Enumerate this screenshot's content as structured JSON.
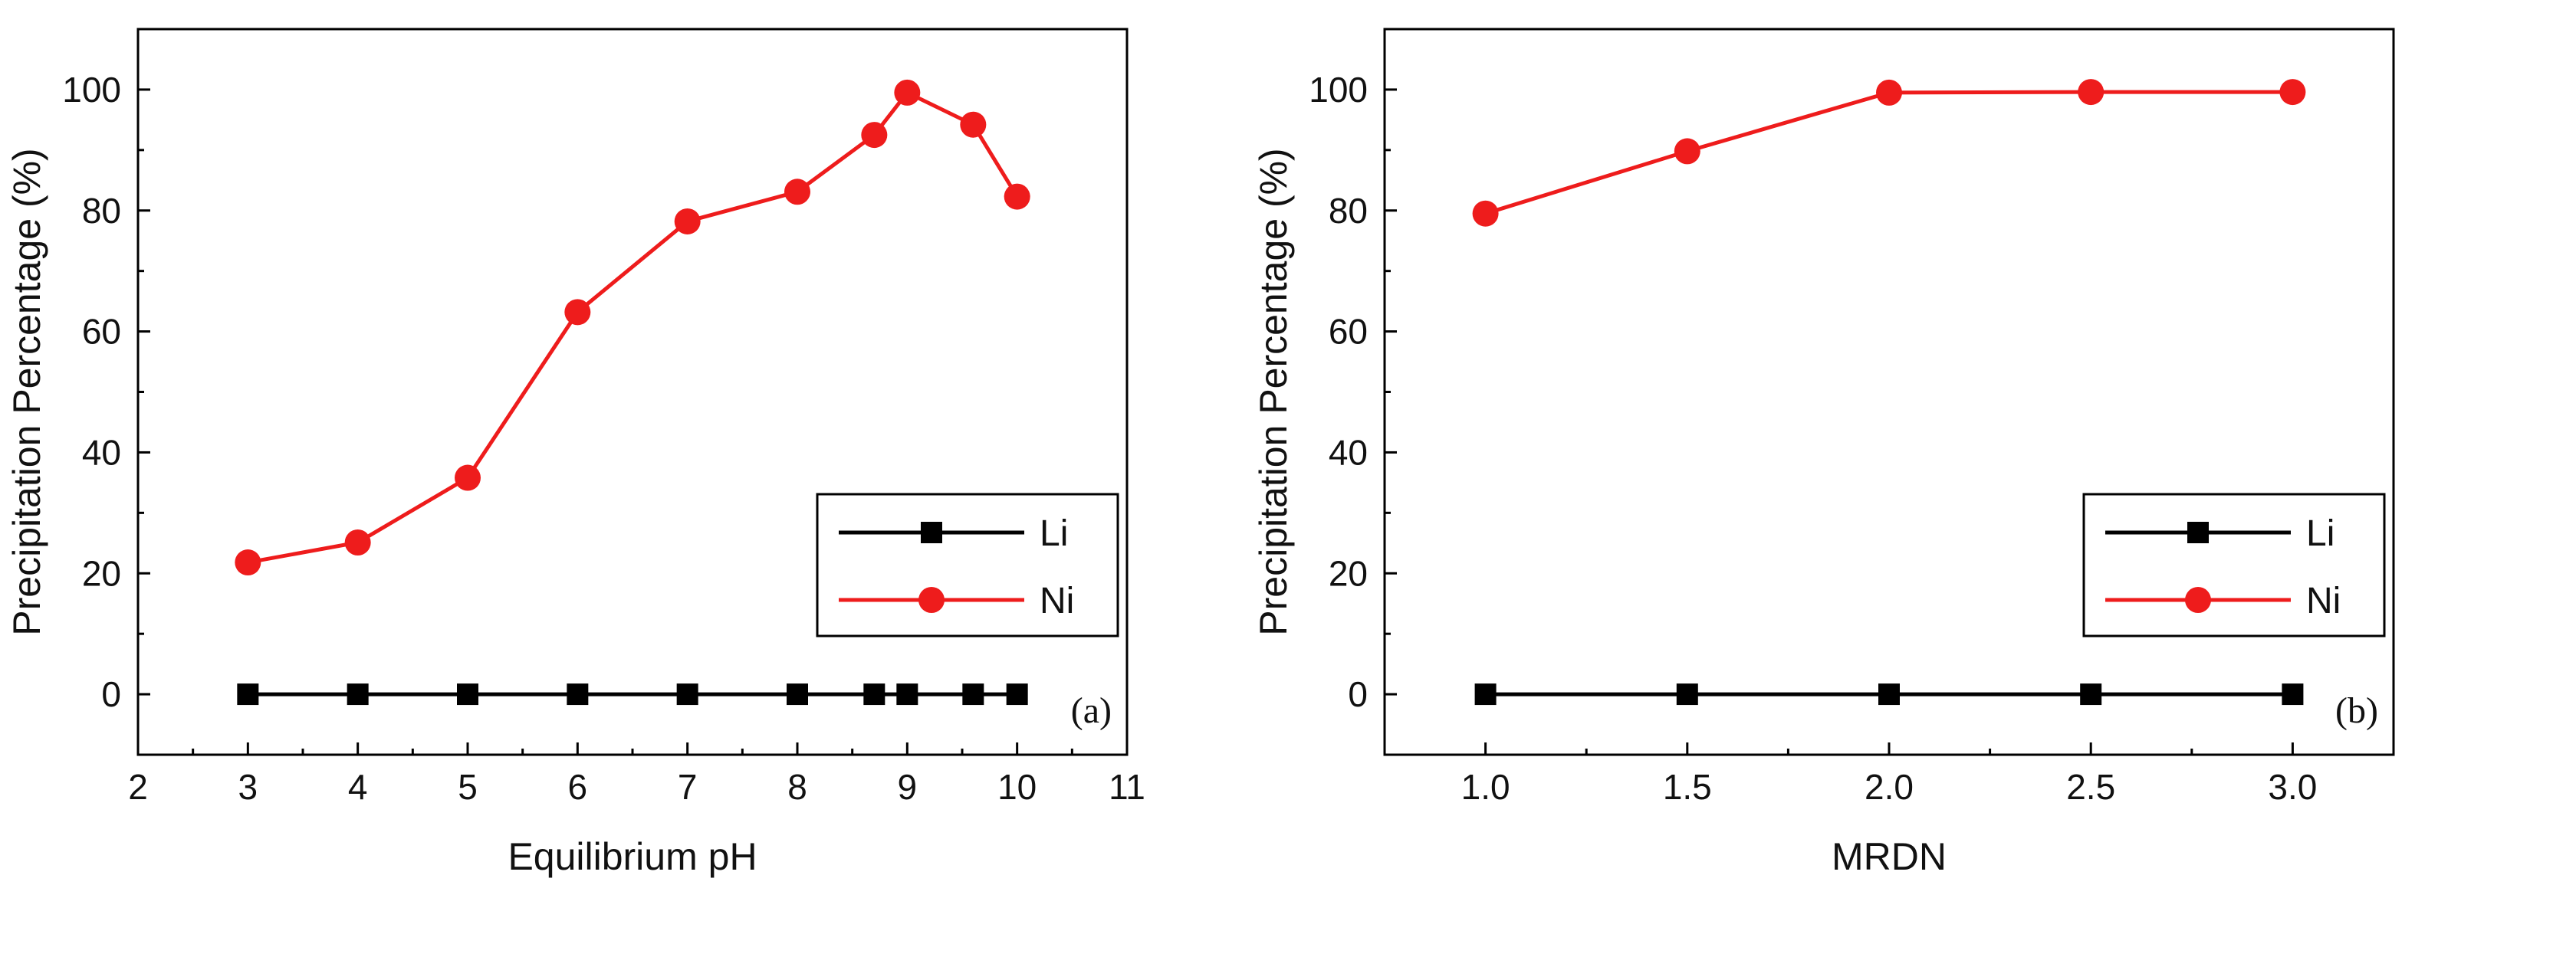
{
  "chart_data": [
    {
      "type": "line",
      "panel_label": "(a)",
      "xlabel": "Equilibrium pH",
      "ylabel": "Precipitation Percentage (%)",
      "xlim": [
        2,
        11
      ],
      "ylim": [
        -10,
        110
      ],
      "xticks": [
        2,
        3,
        4,
        5,
        6,
        7,
        8,
        9,
        10,
        11
      ],
      "xtick_labels": [
        "2",
        "3",
        "4",
        "5",
        "6",
        "7",
        "8",
        "9",
        "10",
        "11"
      ],
      "yticks": [
        0,
        20,
        40,
        60,
        80,
        100
      ],
      "ytick_labels": [
        "0",
        "20",
        "40",
        "60",
        "80",
        "100"
      ],
      "legend_position": "bottom-right",
      "series": [
        {
          "name": "Li",
          "color": "#000000",
          "marker": "square",
          "x": [
            3,
            4,
            5,
            6,
            7,
            8,
            8.7,
            9,
            9.6,
            10
          ],
          "values": [
            0,
            0,
            0,
            0,
            0,
            0,
            0,
            0,
            0,
            0
          ]
        },
        {
          "name": "Ni",
          "color": "#ee1c1c",
          "marker": "circle",
          "x": [
            3,
            4,
            5,
            6,
            7,
            8,
            8.7,
            9,
            9.6,
            10
          ],
          "values": [
            21.8,
            25.1,
            35.8,
            63.2,
            78.2,
            83.1,
            92.5,
            99.5,
            94.2,
            82.3
          ]
        }
      ]
    },
    {
      "type": "line",
      "panel_label": "(b)",
      "xlabel": "MRDN",
      "ylabel": "Precipitation Percentage (%)",
      "xlim": [
        0.75,
        3.25
      ],
      "ylim": [
        -10,
        110
      ],
      "xticks": [
        1.0,
        1.5,
        2.0,
        2.5,
        3.0
      ],
      "xtick_labels": [
        "1.0",
        "1.5",
        "2.0",
        "2.5",
        "3.0"
      ],
      "yticks": [
        0,
        20,
        40,
        60,
        80,
        100
      ],
      "ytick_labels": [
        "0",
        "20",
        "40",
        "60",
        "80",
        "100"
      ],
      "legend_position": "bottom-right",
      "series": [
        {
          "name": "Li",
          "color": "#000000",
          "marker": "square",
          "x": [
            1.0,
            1.5,
            2.0,
            2.5,
            3.0
          ],
          "values": [
            0,
            0,
            0,
            0,
            0
          ]
        },
        {
          "name": "Ni",
          "color": "#ee1c1c",
          "marker": "circle",
          "x": [
            1.0,
            1.5,
            2.0,
            2.5,
            3.0
          ],
          "values": [
            79.5,
            89.8,
            99.5,
            99.6,
            99.6
          ]
        }
      ]
    }
  ]
}
